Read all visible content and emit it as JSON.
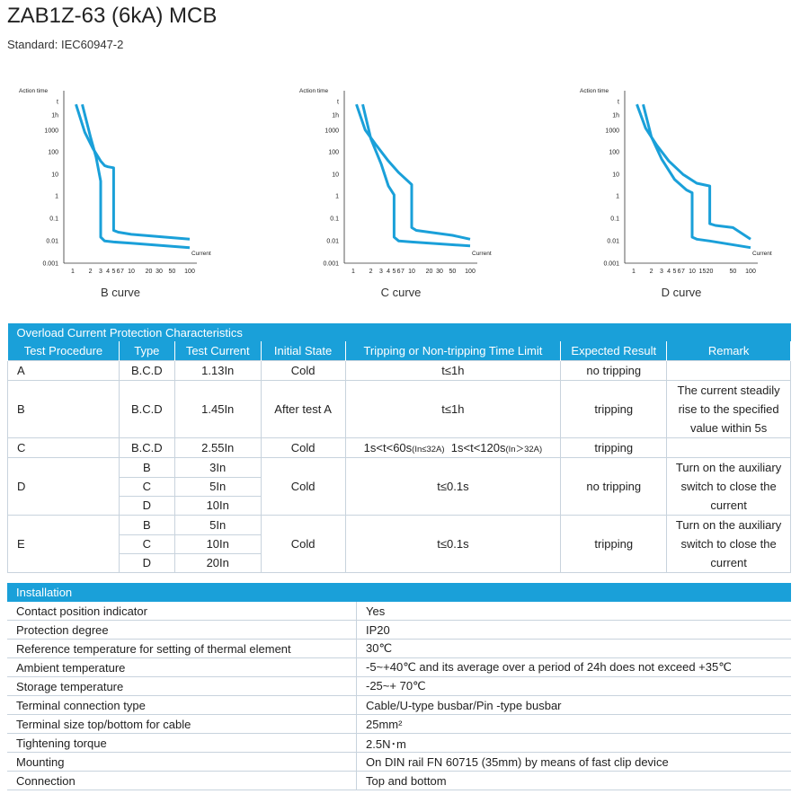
{
  "header": {
    "title": "ZAB1Z-63 (6kA) MCB",
    "standard": "Standard: IEC60947-2"
  },
  "chart_data": [
    {
      "type": "line",
      "caption": "B curve",
      "ylabel": "Action time",
      "xlabel": "Current",
      "x_ticks": [
        "1",
        "2",
        "3",
        "4",
        "5",
        "6",
        "7",
        "10",
        "20",
        "30",
        "50",
        "100"
      ],
      "y_ticks": [
        "t",
        "1h",
        "1000",
        "100",
        "10",
        "1",
        "0.1",
        "0.01",
        "0.001"
      ],
      "series": [
        {
          "x": [
            1.13,
            1.6,
            2.2,
            3,
            3.5,
            4,
            5,
            5,
            6,
            10,
            100
          ],
          "y": [
            7200,
            800,
            150,
            40,
            25,
            22,
            20,
            0.03,
            0.025,
            0.02,
            0.012
          ]
        },
        {
          "x": [
            1.45,
            2,
            2.5,
            3,
            3,
            3.5,
            5,
            10,
            100
          ],
          "y": [
            7200,
            500,
            60,
            5,
            0.015,
            0.01,
            0.009,
            0.008,
            0.005
          ]
        }
      ]
    },
    {
      "type": "line",
      "caption": "C curve",
      "ylabel": "Action time",
      "xlabel": "Current",
      "x_ticks": [
        "1",
        "2",
        "3",
        "4",
        "5",
        "6",
        "7",
        "10",
        "20",
        "30",
        "50",
        "100"
      ],
      "y_ticks": [
        "t",
        "1h",
        "1000",
        "100",
        "10",
        "1",
        "0.1",
        "0.01",
        "0.001"
      ],
      "series": [
        {
          "x": [
            1.13,
            1.6,
            2.5,
            4,
            6,
            10,
            10,
            12,
            20,
            50,
            100
          ],
          "y": [
            7200,
            1000,
            200,
            40,
            12,
            3.5,
            0.04,
            0.03,
            0.025,
            0.018,
            0.012
          ]
        },
        {
          "x": [
            1.45,
            2,
            3,
            4,
            5,
            5,
            6,
            10,
            100
          ],
          "y": [
            7200,
            400,
            30,
            3,
            1.2,
            0.015,
            0.01,
            0.009,
            0.006
          ]
        }
      ]
    },
    {
      "type": "line",
      "caption": "D curve",
      "ylabel": "Action time",
      "xlabel": "Current",
      "x_ticks": [
        "1",
        "2",
        "3",
        "4",
        "5",
        "6",
        "7",
        "10",
        "15",
        "20",
        "50",
        "100"
      ],
      "y_ticks": [
        "t",
        "1h",
        "1000",
        "100",
        "10",
        "1",
        "0.1",
        "0.01",
        "0.001"
      ],
      "series": [
        {
          "x": [
            1.13,
            1.6,
            2.5,
            4,
            7,
            12,
            20,
            20,
            25,
            50,
            100
          ],
          "y": [
            7200,
            1200,
            200,
            40,
            10,
            4,
            3,
            0.06,
            0.05,
            0.04,
            0.012
          ]
        },
        {
          "x": [
            1.45,
            2,
            3,
            5,
            8,
            10,
            10,
            12,
            20,
            100
          ],
          "y": [
            7200,
            500,
            50,
            6,
            2,
            1.5,
            0.015,
            0.012,
            0.01,
            0.005
          ]
        }
      ]
    }
  ],
  "overload": {
    "section_title": "Overload Current Protection Characteristics",
    "columns": [
      "Test  Procedure",
      "Type",
      "Test Current",
      "Initial State",
      "Tripping or Non-tripping Time Limit",
      "Expected Result",
      "Remark"
    ],
    "rows": {
      "a": {
        "proc": "A",
        "type": "B.C.D",
        "current": "1.13In",
        "state": "Cold",
        "time": "t≤1h",
        "result": "no tripping",
        "remark": ""
      },
      "b": {
        "proc": "B",
        "type": "B.C.D",
        "current": "1.45In",
        "state": "After test A",
        "time": "t≤1h",
        "result": "tripping",
        "remark": "The current steadily rise to the specified value within 5s"
      },
      "c": {
        "proc": "C",
        "type": "B.C.D",
        "current": "2.55In",
        "state": "Cold",
        "time_a": "1s<t<60s",
        "time_a_sub": "(In≤32A)",
        "time_b": "1s<t<120s",
        "time_b_sub": "(In＞32A)",
        "result": "tripping",
        "remark": ""
      },
      "d": {
        "proc": "D",
        "subs": [
          {
            "type": "B",
            "current": "3In"
          },
          {
            "type": "C",
            "current": "5In"
          },
          {
            "type": "D",
            "current": "10In"
          }
        ],
        "state": "Cold",
        "time": "t≤0.1s",
        "result": "no tripping",
        "remark": "Turn on the auxiliary switch to close the current"
      },
      "e": {
        "proc": "E",
        "subs": [
          {
            "type": "B",
            "current": "5In"
          },
          {
            "type": "C",
            "current": "10In"
          },
          {
            "type": "D",
            "current": "20In"
          }
        ],
        "state": "Cold",
        "time": "t≤0.1s",
        "result": "tripping",
        "remark": "Turn on the auxiliary switch to close the current"
      }
    }
  },
  "installation": {
    "section_title": "Installation",
    "rows": [
      {
        "label": "Contact position indicator",
        "value": "Yes"
      },
      {
        "label": "Protection degree",
        "value": "IP20"
      },
      {
        "label": "Reference temperature for setting of thermal element",
        "value": "30℃"
      },
      {
        "label": "Ambient temperature",
        "value": "-5~+40℃ and its average over a period of 24h does not exceed +35℃"
      },
      {
        "label": "Storage temperature",
        "value": "-25~+ 70℃"
      },
      {
        "label": "Terminal connection type",
        "value": "Cable/U-type busbar/Pin -type busbar"
      },
      {
        "label": "Terminal size top/bottom for cable",
        "value": "25mm²"
      },
      {
        "label": "Tightening torque",
        "value": "2.5N･m"
      },
      {
        "label": "Mounting",
        "value": "On DIN rail FN 60715 (35mm) by means of fast clip device"
      },
      {
        "label": "Connection",
        "value": "Top and bottom"
      }
    ]
  }
}
